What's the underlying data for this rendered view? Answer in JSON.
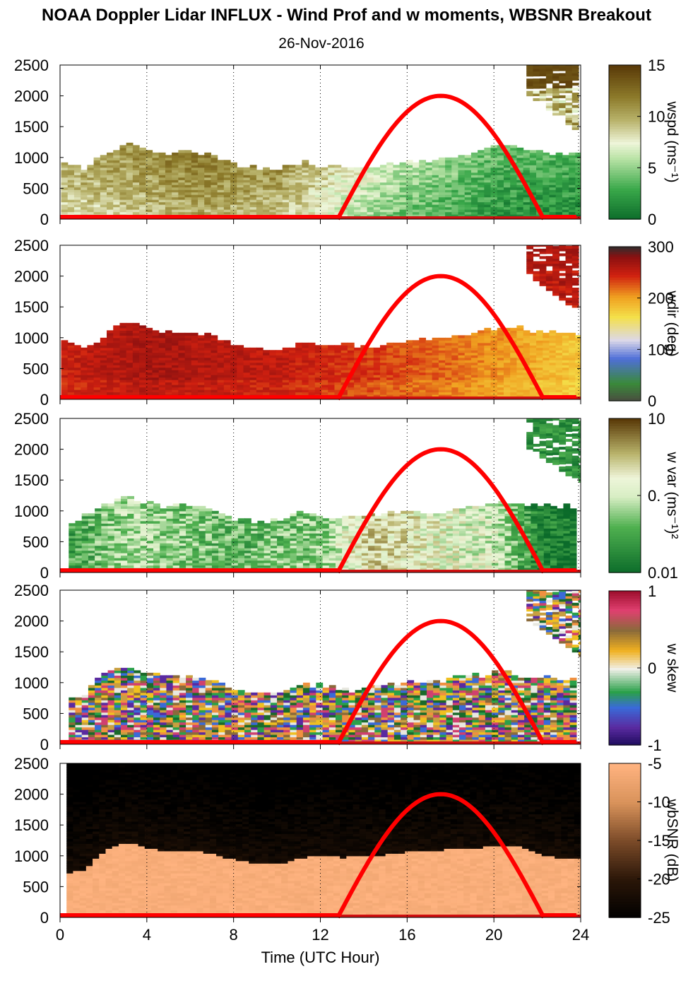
{
  "title": "NOAA Doppler Lidar INFLUX - Wind Prof and w moments, WBSNR Breakout",
  "subtitle": "26-Nov-2016",
  "chart_data": [
    {
      "type": "heatmap",
      "colorbar_label": "wspd (ms⁻¹)",
      "colorbar_ticks": [
        "15",
        "10",
        "5",
        "0"
      ],
      "x_ticks": [
        "0",
        "4",
        "8",
        "12",
        "16",
        "20",
        "24"
      ],
      "y_ticks": [
        "2500",
        "2000",
        "1500",
        "1000",
        "500",
        "0"
      ],
      "xlim": [
        0,
        24
      ],
      "ylim": [
        0,
        2500
      ],
      "data_top_m": [
        [
          0.0,
          900
        ],
        [
          1.0,
          800
        ],
        [
          2.0,
          1050
        ],
        [
          3.0,
          1200
        ],
        [
          4.0,
          1100
        ],
        [
          5.0,
          1050
        ],
        [
          6.0,
          1080
        ],
        [
          7.0,
          1000
        ],
        [
          8.0,
          850
        ],
        [
          9.0,
          800
        ],
        [
          10.0,
          800
        ],
        [
          11.0,
          900
        ],
        [
          12.0,
          850
        ],
        [
          13.0,
          850
        ],
        [
          14.0,
          850
        ],
        [
          15.0,
          850
        ],
        [
          16.0,
          900
        ],
        [
          17.0,
          950
        ],
        [
          18.0,
          1000
        ],
        [
          19.0,
          1080
        ],
        [
          20.0,
          1150
        ],
        [
          21.0,
          1150
        ],
        [
          22.0,
          1080
        ],
        [
          23.0,
          1050
        ],
        [
          23.8,
          1050
        ]
      ],
      "upper_patch": {
        "x_range": [
          21.5,
          23.8
        ],
        "y_range": [
          1400,
          2500
        ]
      },
      "value_profile": [
        [
          0,
          9
        ],
        [
          6,
          11
        ],
        [
          10,
          10
        ],
        [
          13,
          7
        ],
        [
          16,
          5
        ],
        [
          20,
          3
        ],
        [
          24,
          2.5
        ]
      ]
    },
    {
      "type": "heatmap",
      "colorbar_label": "wdir (deg)",
      "colorbar_ticks": [
        "300",
        "200",
        "100",
        "0"
      ],
      "x_ticks": [
        "0",
        "4",
        "8",
        "12",
        "16",
        "20",
        "24"
      ],
      "y_ticks": [
        "2500",
        "2000",
        "1500",
        "1000",
        "500",
        "0"
      ],
      "xlim": [
        0,
        24
      ],
      "ylim": [
        0,
        2500
      ],
      "data_top_m": [
        [
          0.0,
          900
        ],
        [
          1.0,
          800
        ],
        [
          2.0,
          1050
        ],
        [
          3.0,
          1250
        ],
        [
          4.0,
          1100
        ],
        [
          5.0,
          1050
        ],
        [
          6.0,
          1080
        ],
        [
          7.0,
          1000
        ],
        [
          8.0,
          850
        ],
        [
          9.0,
          800
        ],
        [
          10.0,
          800
        ],
        [
          11.0,
          900
        ],
        [
          12.0,
          850
        ],
        [
          13.0,
          850
        ],
        [
          14.0,
          850
        ],
        [
          15.0,
          850
        ],
        [
          16.0,
          900
        ],
        [
          17.0,
          950
        ],
        [
          18.0,
          1000
        ],
        [
          19.0,
          1080
        ],
        [
          20.0,
          1150
        ],
        [
          21.0,
          1150
        ],
        [
          22.0,
          1080
        ],
        [
          23.0,
          1050
        ],
        [
          23.8,
          1050
        ]
      ],
      "upper_patch": {
        "x_range": [
          21.5,
          23.8
        ],
        "y_range": [
          1400,
          2500
        ]
      },
      "value_profile": [
        [
          0,
          300
        ],
        [
          4,
          320
        ],
        [
          10,
          305
        ],
        [
          14,
          285
        ],
        [
          18,
          265
        ],
        [
          21,
          240
        ],
        [
          24,
          215
        ]
      ]
    },
    {
      "type": "heatmap",
      "colorbar_label": "w var (ms⁻¹)²",
      "colorbar_ticks": [
        "10",
        "0.",
        "0.01"
      ],
      "x_ticks": [
        "0",
        "4",
        "8",
        "12",
        "16",
        "20",
        "24"
      ],
      "y_ticks": [
        "2500",
        "2000",
        "1500",
        "1000",
        "500",
        "0"
      ],
      "xlim": [
        0,
        24
      ],
      "ylim": [
        0,
        2500
      ],
      "data_top_m": [
        [
          0.0,
          700
        ],
        [
          1.0,
          900
        ],
        [
          2.0,
          1100
        ],
        [
          3.0,
          1200
        ],
        [
          4.0,
          1100
        ],
        [
          5.0,
          1050
        ],
        [
          6.0,
          1080
        ],
        [
          7.0,
          1000
        ],
        [
          8.0,
          850
        ],
        [
          9.0,
          800
        ],
        [
          10.0,
          850
        ],
        [
          11.0,
          950
        ],
        [
          12.0,
          900
        ],
        [
          13.0,
          850
        ],
        [
          14.0,
          900
        ],
        [
          15.0,
          950
        ],
        [
          16.0,
          950
        ],
        [
          17.0,
          950
        ],
        [
          18.0,
          1000
        ],
        [
          19.0,
          1050
        ],
        [
          20.0,
          1100
        ],
        [
          21.0,
          1100
        ],
        [
          22.0,
          1050
        ],
        [
          23.0,
          1050
        ],
        [
          24.0,
          1050
        ]
      ],
      "upper_patch": {
        "x_range": [
          21.5,
          24.0
        ],
        "y_range": [
          1400,
          2500
        ]
      },
      "value_profile": [
        [
          0,
          0.2
        ],
        [
          3,
          0.45
        ],
        [
          8,
          0.3
        ],
        [
          12,
          0.4
        ],
        [
          14,
          0.7
        ],
        [
          20,
          0.5
        ],
        [
          22,
          0.1
        ],
        [
          24,
          0.05
        ]
      ]
    },
    {
      "type": "heatmap",
      "colorbar_label": "w skew",
      "colorbar_ticks": [
        "1",
        "0",
        "-1"
      ],
      "x_ticks": [
        "0",
        "4",
        "8",
        "12",
        "16",
        "20",
        "24"
      ],
      "y_ticks": [
        "2500",
        "2000",
        "1500",
        "1000",
        "500",
        "0"
      ],
      "xlim": [
        0,
        24
      ],
      "ylim": [
        0,
        2500
      ],
      "data_top_m": [
        [
          0.0,
          750
        ],
        [
          1.0,
          800
        ],
        [
          2.0,
          1150
        ],
        [
          3.0,
          1250
        ],
        [
          4.0,
          1100
        ],
        [
          5.0,
          1050
        ],
        [
          6.0,
          1080
        ],
        [
          7.0,
          1000
        ],
        [
          8.0,
          850
        ],
        [
          9.0,
          800
        ],
        [
          10.0,
          850
        ],
        [
          11.0,
          950
        ],
        [
          12.0,
          950
        ],
        [
          13.0,
          850
        ],
        [
          14.0,
          900
        ],
        [
          15.0,
          950
        ],
        [
          16.0,
          1000
        ],
        [
          17.0,
          1000
        ],
        [
          18.0,
          1050
        ],
        [
          19.0,
          1100
        ],
        [
          20.0,
          1150
        ],
        [
          21.0,
          1100
        ],
        [
          22.0,
          1050
        ],
        [
          23.0,
          1050
        ],
        [
          24.0,
          1050
        ]
      ],
      "upper_patch": {
        "x_range": [
          21.5,
          24.0
        ],
        "y_range": [
          1400,
          2500
        ]
      },
      "value_profile": [
        [
          0,
          0
        ],
        [
          24,
          0
        ]
      ]
    },
    {
      "type": "heatmap",
      "colorbar_label": "wbSNR (dB)",
      "colorbar_ticks": [
        "-5",
        "-10",
        "-15",
        "-20",
        "-25"
      ],
      "x_ticks": [
        "0",
        "4",
        "8",
        "12",
        "16",
        "20",
        "24"
      ],
      "y_ticks": [
        "2500",
        "2000",
        "1500",
        "1000",
        "500",
        "0"
      ],
      "xlim": [
        0,
        24
      ],
      "ylim": [
        0,
        2500
      ],
      "x_axis_label": "Time (UTC Hour)",
      "data_top_m": [
        [
          0.0,
          700
        ],
        [
          1.0,
          750
        ],
        [
          2.0,
          1100
        ],
        [
          3.0,
          1200
        ],
        [
          4.0,
          1100
        ],
        [
          5.0,
          1050
        ],
        [
          6.0,
          1080
        ],
        [
          7.0,
          1000
        ],
        [
          8.0,
          900
        ],
        [
          9.0,
          850
        ],
        [
          10.0,
          850
        ],
        [
          11.0,
          950
        ],
        [
          12.0,
          1000
        ],
        [
          13.0,
          950
        ],
        [
          14.0,
          1000
        ],
        [
          15.0,
          1000
        ],
        [
          16.0,
          1050
        ],
        [
          17.0,
          1050
        ],
        [
          18.0,
          1100
        ],
        [
          19.0,
          1100
        ],
        [
          20.0,
          1150
        ],
        [
          21.0,
          1150
        ],
        [
          22.0,
          1000
        ],
        [
          23.0,
          950
        ],
        [
          24.0,
          950
        ]
      ],
      "value_profile": [
        [
          0,
          -8
        ],
        [
          24,
          -8
        ]
      ]
    }
  ],
  "solar_curve": {
    "color": "#ff0000",
    "start_hour": 12.8,
    "end_hour": 22.3,
    "peak_hour": 17.55,
    "peak_height_m": 2000
  }
}
